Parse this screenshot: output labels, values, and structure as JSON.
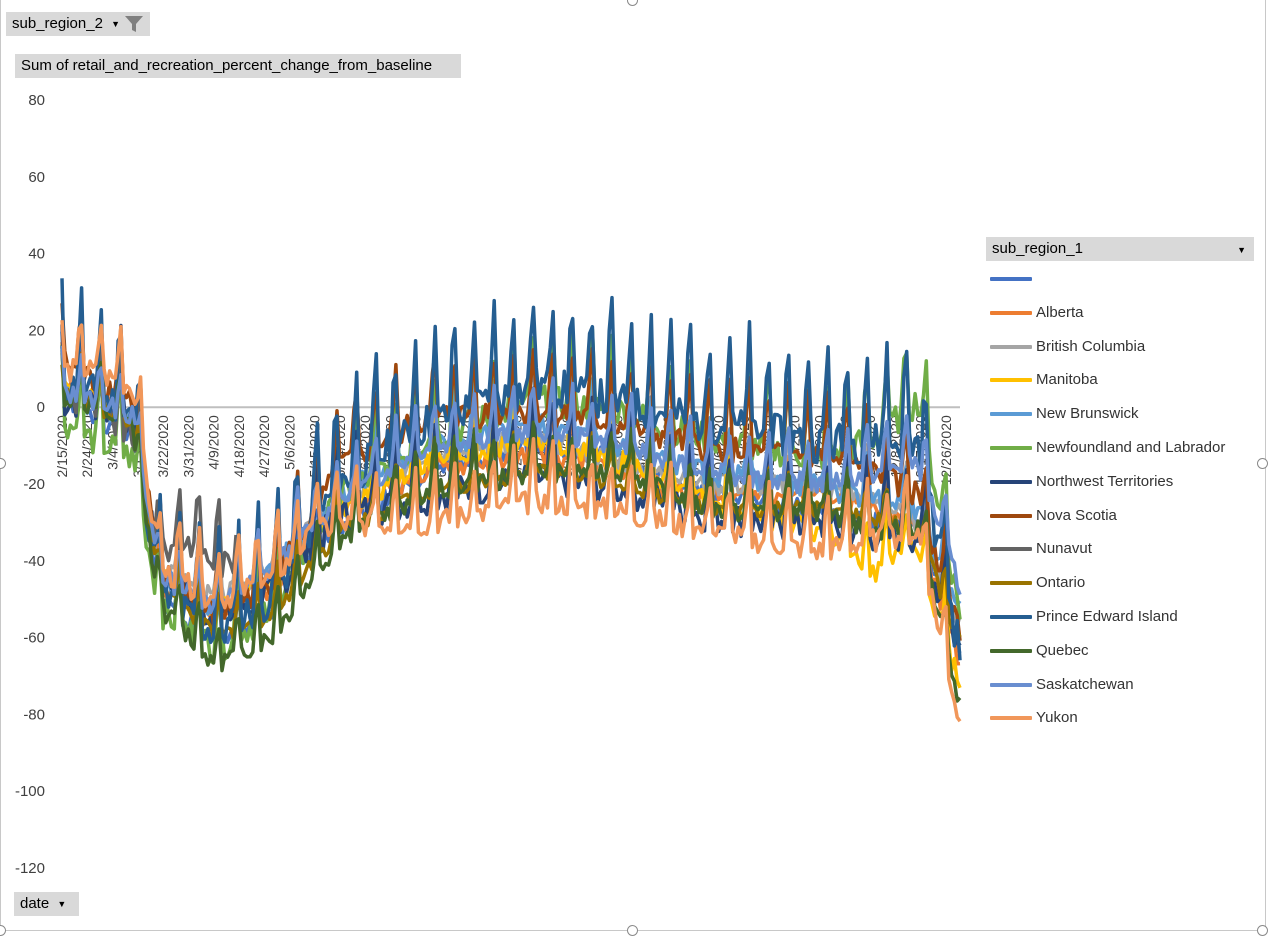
{
  "filter_field": {
    "label": "sub_region_2"
  },
  "values_field": {
    "label": "Sum of retail_and_recreation_percent_change_from_baseline"
  },
  "axis_field": {
    "label": "date"
  },
  "legend": {
    "header": "sub_region_1"
  },
  "chart_data": {
    "type": "line",
    "title": "",
    "xlabel": "",
    "ylabel": "",
    "ylim": [
      -120,
      80
    ],
    "yticks": [
      80,
      60,
      40,
      20,
      0,
      -20,
      -40,
      -60,
      -80,
      -100,
      -120
    ],
    "x_start": "2/15/2020",
    "x_end": "12/31/2020",
    "xtick_labels": [
      "2/15/2020",
      "2/24/2020",
      "3/4/2020",
      "3/13/2020",
      "3/22/2020",
      "3/31/2020",
      "4/9/2020",
      "4/18/2020",
      "4/27/2020",
      "5/6/2020",
      "5/15/2020",
      "5/24/2020",
      "6/2/2020",
      "6/11/2020",
      "6/20/2020",
      "6/29/2020",
      "7/8/2020",
      "7/17/2020",
      "7/26/2020",
      "8/4/2020",
      "8/13/2020",
      "8/22/2020",
      "8/31/2020",
      "9/9/2020",
      "9/18/2020",
      "9/27/2020",
      "10/6/2020",
      "10/15/2020",
      "10/24/2020",
      "11/2/2020",
      "11/11/2020",
      "11/20/2020",
      "11/29/2020",
      "12/8/2020",
      "12/17/2020",
      "12/26/2020"
    ],
    "legend_position": "right",
    "series": [
      {
        "name": "",
        "color": "#4472C4",
        "anchors": [
          [
            0,
            5
          ],
          [
            10,
            0
          ],
          [
            25,
            -5
          ],
          [
            35,
            -48
          ],
          [
            55,
            -60
          ],
          [
            75,
            -52
          ],
          [
            90,
            -35
          ],
          [
            100,
            -28
          ],
          [
            130,
            -15
          ],
          [
            170,
            -8
          ],
          [
            200,
            -12
          ],
          [
            230,
            -20
          ],
          [
            270,
            -25
          ],
          [
            290,
            -28
          ],
          [
            305,
            -30
          ],
          [
            320,
            -60
          ]
        ],
        "wave": 6,
        "seed": 1
      },
      {
        "name": "Alberta",
        "color": "#ED7D31",
        "anchors": [
          [
            0,
            8
          ],
          [
            10,
            5
          ],
          [
            25,
            0
          ],
          [
            35,
            -45
          ],
          [
            55,
            -52
          ],
          [
            75,
            -45
          ],
          [
            90,
            -30
          ],
          [
            100,
            -25
          ],
          [
            130,
            -15
          ],
          [
            170,
            -10
          ],
          [
            200,
            -15
          ],
          [
            230,
            -22
          ],
          [
            270,
            -20
          ],
          [
            290,
            -25
          ],
          [
            305,
            -30
          ],
          [
            320,
            -65
          ]
        ],
        "wave": 6,
        "seed": 2
      },
      {
        "name": "British Columbia",
        "color": "#A5A5A5",
        "anchors": [
          [
            0,
            6
          ],
          [
            10,
            3
          ],
          [
            25,
            -2
          ],
          [
            35,
            -40
          ],
          [
            55,
            -48
          ],
          [
            75,
            -40
          ],
          [
            90,
            -28
          ],
          [
            100,
            -22
          ],
          [
            130,
            -10
          ],
          [
            170,
            -6
          ],
          [
            200,
            -12
          ],
          [
            230,
            -18
          ],
          [
            270,
            -18
          ],
          [
            290,
            -22
          ],
          [
            305,
            -28
          ],
          [
            320,
            -55
          ]
        ],
        "wave": 6,
        "seed": 3
      },
      {
        "name": "Manitoba",
        "color": "#FFC000",
        "anchors": [
          [
            0,
            8
          ],
          [
            10,
            5
          ],
          [
            25,
            0
          ],
          [
            35,
            -40
          ],
          [
            55,
            -50
          ],
          [
            75,
            -42
          ],
          [
            90,
            -30
          ],
          [
            100,
            -24
          ],
          [
            130,
            -12
          ],
          [
            170,
            -6
          ],
          [
            200,
            -12
          ],
          [
            230,
            -22
          ],
          [
            270,
            -30
          ],
          [
            290,
            -40
          ],
          [
            305,
            -35
          ],
          [
            320,
            -70
          ]
        ],
        "wave": 7,
        "seed": 4
      },
      {
        "name": "New Brunswick",
        "color": "#5B9BD5",
        "anchors": [
          [
            0,
            6
          ],
          [
            10,
            3
          ],
          [
            25,
            -2
          ],
          [
            35,
            -42
          ],
          [
            55,
            -50
          ],
          [
            75,
            -40
          ],
          [
            90,
            -28
          ],
          [
            100,
            -20
          ],
          [
            130,
            -8
          ],
          [
            170,
            -2
          ],
          [
            200,
            -8
          ],
          [
            230,
            -15
          ],
          [
            270,
            -18
          ],
          [
            290,
            -22
          ],
          [
            305,
            -25
          ],
          [
            320,
            -50
          ]
        ],
        "wave": 7,
        "seed": 5
      },
      {
        "name": "Newfoundland and Labrador",
        "color": "#70AD47",
        "anchors": [
          [
            0,
            0
          ],
          [
            10,
            -5
          ],
          [
            25,
            -10
          ],
          [
            35,
            -50
          ],
          [
            55,
            -60
          ],
          [
            75,
            -50
          ],
          [
            90,
            -30
          ],
          [
            100,
            -20
          ],
          [
            130,
            -5
          ],
          [
            170,
            5
          ],
          [
            200,
            2
          ],
          [
            230,
            -5
          ],
          [
            270,
            -10
          ],
          [
            290,
            -5
          ],
          [
            305,
            5
          ],
          [
            320,
            -50
          ]
        ],
        "wave": 9,
        "seed": 6
      },
      {
        "name": "Northwest Territories",
        "color": "#264478",
        "anchors": [
          [
            0,
            5
          ],
          [
            10,
            5
          ],
          [
            25,
            0
          ],
          [
            35,
            -40
          ],
          [
            55,
            -52
          ],
          [
            75,
            -45
          ],
          [
            90,
            -32
          ],
          [
            100,
            -25
          ],
          [
            130,
            -20
          ],
          [
            170,
            -15
          ],
          [
            200,
            -18
          ],
          [
            230,
            -25
          ],
          [
            270,
            -28
          ],
          [
            290,
            -30
          ],
          [
            305,
            -30
          ],
          [
            320,
            -60
          ]
        ],
        "wave": 10,
        "seed": 7
      },
      {
        "name": "Nova Scotia",
        "color": "#9E480E",
        "anchors": [
          [
            0,
            15
          ],
          [
            10,
            10
          ],
          [
            25,
            5
          ],
          [
            35,
            -40
          ],
          [
            55,
            -52
          ],
          [
            75,
            -42
          ],
          [
            90,
            -25
          ],
          [
            100,
            -12
          ],
          [
            130,
            0
          ],
          [
            170,
            2
          ],
          [
            200,
            -2
          ],
          [
            230,
            -8
          ],
          [
            270,
            -10
          ],
          [
            290,
            -15
          ],
          [
            305,
            -20
          ],
          [
            320,
            -55
          ]
        ],
        "wave": 8,
        "seed": 8
      },
      {
        "name": "Nunavut",
        "color": "#636363",
        "anchors": [
          [
            0,
            5
          ],
          [
            10,
            3
          ],
          [
            25,
            -5
          ],
          [
            35,
            -35
          ],
          [
            45,
            -32
          ],
          [
            55,
            -38
          ],
          [
            62,
            -38
          ]
        ],
        "wave": 8,
        "seed": 9
      },
      {
        "name": "Ontario",
        "color": "#997300",
        "anchors": [
          [
            0,
            5
          ],
          [
            10,
            3
          ],
          [
            25,
            -2
          ],
          [
            35,
            -45
          ],
          [
            55,
            -58
          ],
          [
            75,
            -52
          ],
          [
            90,
            -38
          ],
          [
            100,
            -30
          ],
          [
            130,
            -20
          ],
          [
            170,
            -15
          ],
          [
            200,
            -18
          ],
          [
            230,
            -25
          ],
          [
            270,
            -25
          ],
          [
            290,
            -28
          ],
          [
            305,
            -30
          ],
          [
            320,
            -60
          ]
        ],
        "wave": 5,
        "seed": 10
      },
      {
        "name": "Prince Edward Island",
        "color": "#255E91",
        "anchors": [
          [
            0,
            10
          ],
          [
            10,
            8
          ],
          [
            25,
            3
          ],
          [
            35,
            -45
          ],
          [
            55,
            -55
          ],
          [
            75,
            -45
          ],
          [
            90,
            -25
          ],
          [
            100,
            -15
          ],
          [
            130,
            0
          ],
          [
            170,
            10
          ],
          [
            200,
            5
          ],
          [
            230,
            0
          ],
          [
            270,
            -5
          ],
          [
            290,
            -5
          ],
          [
            305,
            -5
          ],
          [
            320,
            -60
          ]
        ],
        "wave": 12,
        "seed": 11
      },
      {
        "name": "Quebec",
        "color": "#43682B",
        "anchors": [
          [
            0,
            5
          ],
          [
            10,
            2
          ],
          [
            25,
            -3
          ],
          [
            35,
            -50
          ],
          [
            55,
            -65
          ],
          [
            75,
            -58
          ],
          [
            90,
            -42
          ],
          [
            100,
            -32
          ],
          [
            130,
            -20
          ],
          [
            170,
            -15
          ],
          [
            200,
            -15
          ],
          [
            230,
            -25
          ],
          [
            270,
            -25
          ],
          [
            290,
            -30
          ],
          [
            305,
            -30
          ],
          [
            320,
            -75
          ]
        ],
        "wave": 6,
        "seed": 12
      },
      {
        "name": "Saskatchewan",
        "color": "#698ED0",
        "anchors": [
          [
            0,
            6
          ],
          [
            10,
            4
          ],
          [
            25,
            0
          ],
          [
            35,
            -42
          ],
          [
            55,
            -50
          ],
          [
            75,
            -40
          ],
          [
            90,
            -28
          ],
          [
            100,
            -22
          ],
          [
            130,
            -8
          ],
          [
            170,
            -4
          ],
          [
            200,
            -8
          ],
          [
            230,
            -15
          ],
          [
            270,
            -18
          ],
          [
            290,
            -15
          ],
          [
            305,
            -12
          ],
          [
            320,
            -45
          ]
        ],
        "wave": 6,
        "seed": 13
      },
      {
        "name": "Yukon",
        "color": "#F1975A",
        "anchors": [
          [
            0,
            12
          ],
          [
            10,
            12
          ],
          [
            25,
            8
          ],
          [
            35,
            -40
          ],
          [
            55,
            -48
          ],
          [
            75,
            -42
          ],
          [
            90,
            -30
          ],
          [
            100,
            -28
          ],
          [
            130,
            -28
          ],
          [
            170,
            -22
          ],
          [
            200,
            -25
          ],
          [
            230,
            -30
          ],
          [
            270,
            -35
          ],
          [
            290,
            -32
          ],
          [
            305,
            -30
          ],
          [
            320,
            -80
          ]
        ],
        "wave": 7,
        "seed": 14
      }
    ]
  }
}
